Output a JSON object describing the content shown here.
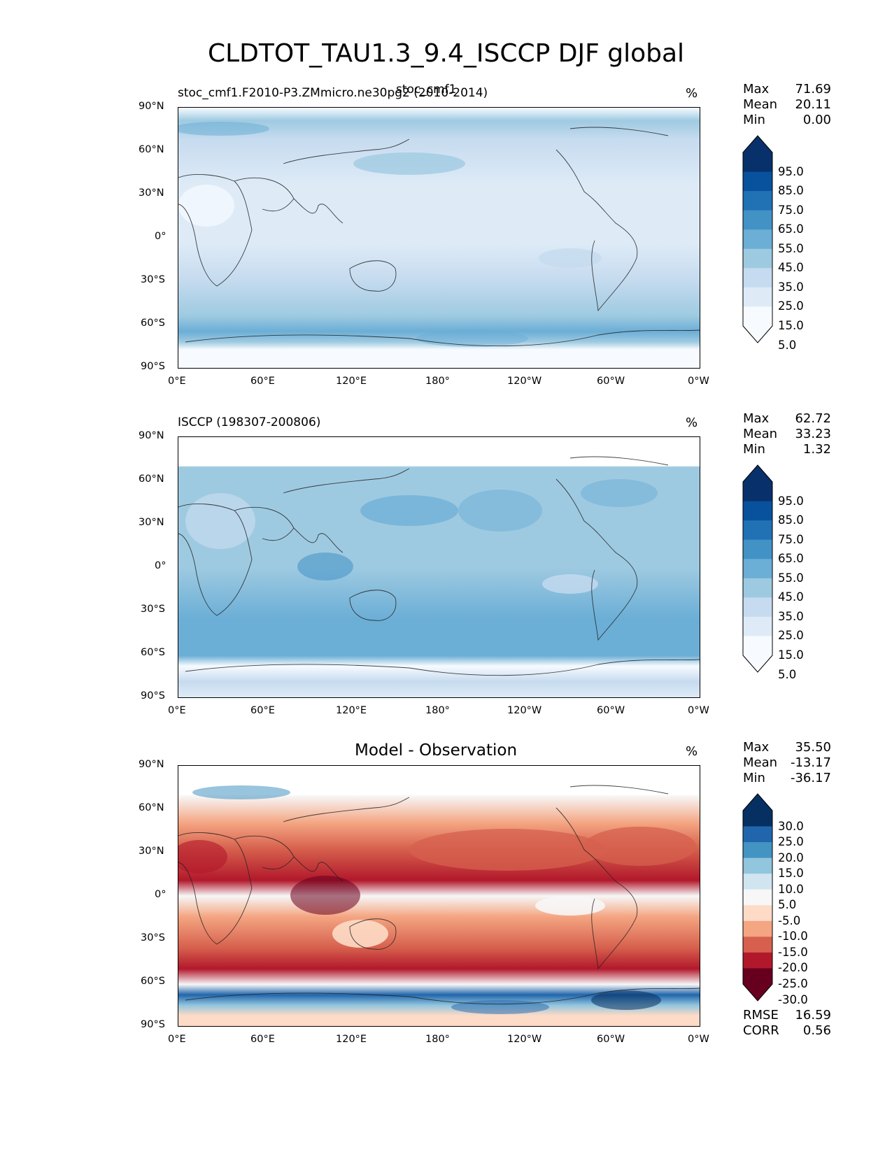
{
  "title": "CLDTOT_TAU1.3_9.4_ISCCP DJF global",
  "lat_ticks": [
    "90°N",
    "60°N",
    "30°N",
    "0°",
    "30°S",
    "60°S",
    "90°S"
  ],
  "lon_ticks": [
    "0°E",
    "60°E",
    "120°E",
    "180°",
    "120°W",
    "60°W",
    "0°W"
  ],
  "panels": [
    {
      "id": "model",
      "subtitle_left": "stoc_cmf1.F2010-P3.ZMmicro.ne30pg2 (2010-2014)",
      "subtitle_center": "stoc_cmf1",
      "units": "%",
      "stats": [
        {
          "label": "Max",
          "value": "71.69"
        },
        {
          "label": "Mean",
          "value": "20.11"
        },
        {
          "label": "Min",
          "value": "0.00"
        }
      ],
      "colorbar": {
        "labels": [
          "95.0",
          "85.0",
          "75.0",
          "65.0",
          "55.0",
          "45.0",
          "35.0",
          "25.0",
          "15.0",
          "5.0"
        ],
        "colors": [
          "#08306b",
          "#08519c",
          "#2171b5",
          "#4292c6",
          "#6baed6",
          "#9ecae1",
          "#c6dbef",
          "#deebf7",
          "#f7fbff"
        ]
      }
    },
    {
      "id": "obs",
      "subtitle_left": "ISCCP (198307-200806)",
      "subtitle_center": "",
      "units": "%",
      "stats": [
        {
          "label": "Max",
          "value": "62.72"
        },
        {
          "label": "Mean",
          "value": "33.23"
        },
        {
          "label": "Min",
          "value": "1.32"
        }
      ],
      "colorbar": {
        "labels": [
          "95.0",
          "85.0",
          "75.0",
          "65.0",
          "55.0",
          "45.0",
          "35.0",
          "25.0",
          "15.0",
          "5.0"
        ],
        "colors": [
          "#08306b",
          "#08519c",
          "#2171b5",
          "#4292c6",
          "#6baed6",
          "#9ecae1",
          "#c6dbef",
          "#deebf7",
          "#f7fbff"
        ]
      }
    },
    {
      "id": "diff",
      "subtitle_left": "",
      "subtitle_center": "Model - Observation",
      "units": "%",
      "stats": [
        {
          "label": "Max",
          "value": "35.50"
        },
        {
          "label": "Mean",
          "value": "-13.17"
        },
        {
          "label": "Min",
          "value": "-36.17"
        }
      ],
      "colorbar": {
        "labels": [
          "30.0",
          "25.0",
          "20.0",
          "15.0",
          "10.0",
          "5.0",
          "-5.0",
          "-10.0",
          "-15.0",
          "-20.0",
          "-25.0",
          "-30.0"
        ],
        "colors": [
          "#053061",
          "#2166ac",
          "#4393c3",
          "#92c5de",
          "#d1e5f0",
          "#f7f7f7",
          "#fddbc7",
          "#f4a582",
          "#d6604d",
          "#b2182b",
          "#67001f"
        ]
      },
      "metrics": [
        {
          "label": "RMSE",
          "value": "16.59"
        },
        {
          "label": "CORR",
          "value": "0.56"
        }
      ]
    }
  ]
}
